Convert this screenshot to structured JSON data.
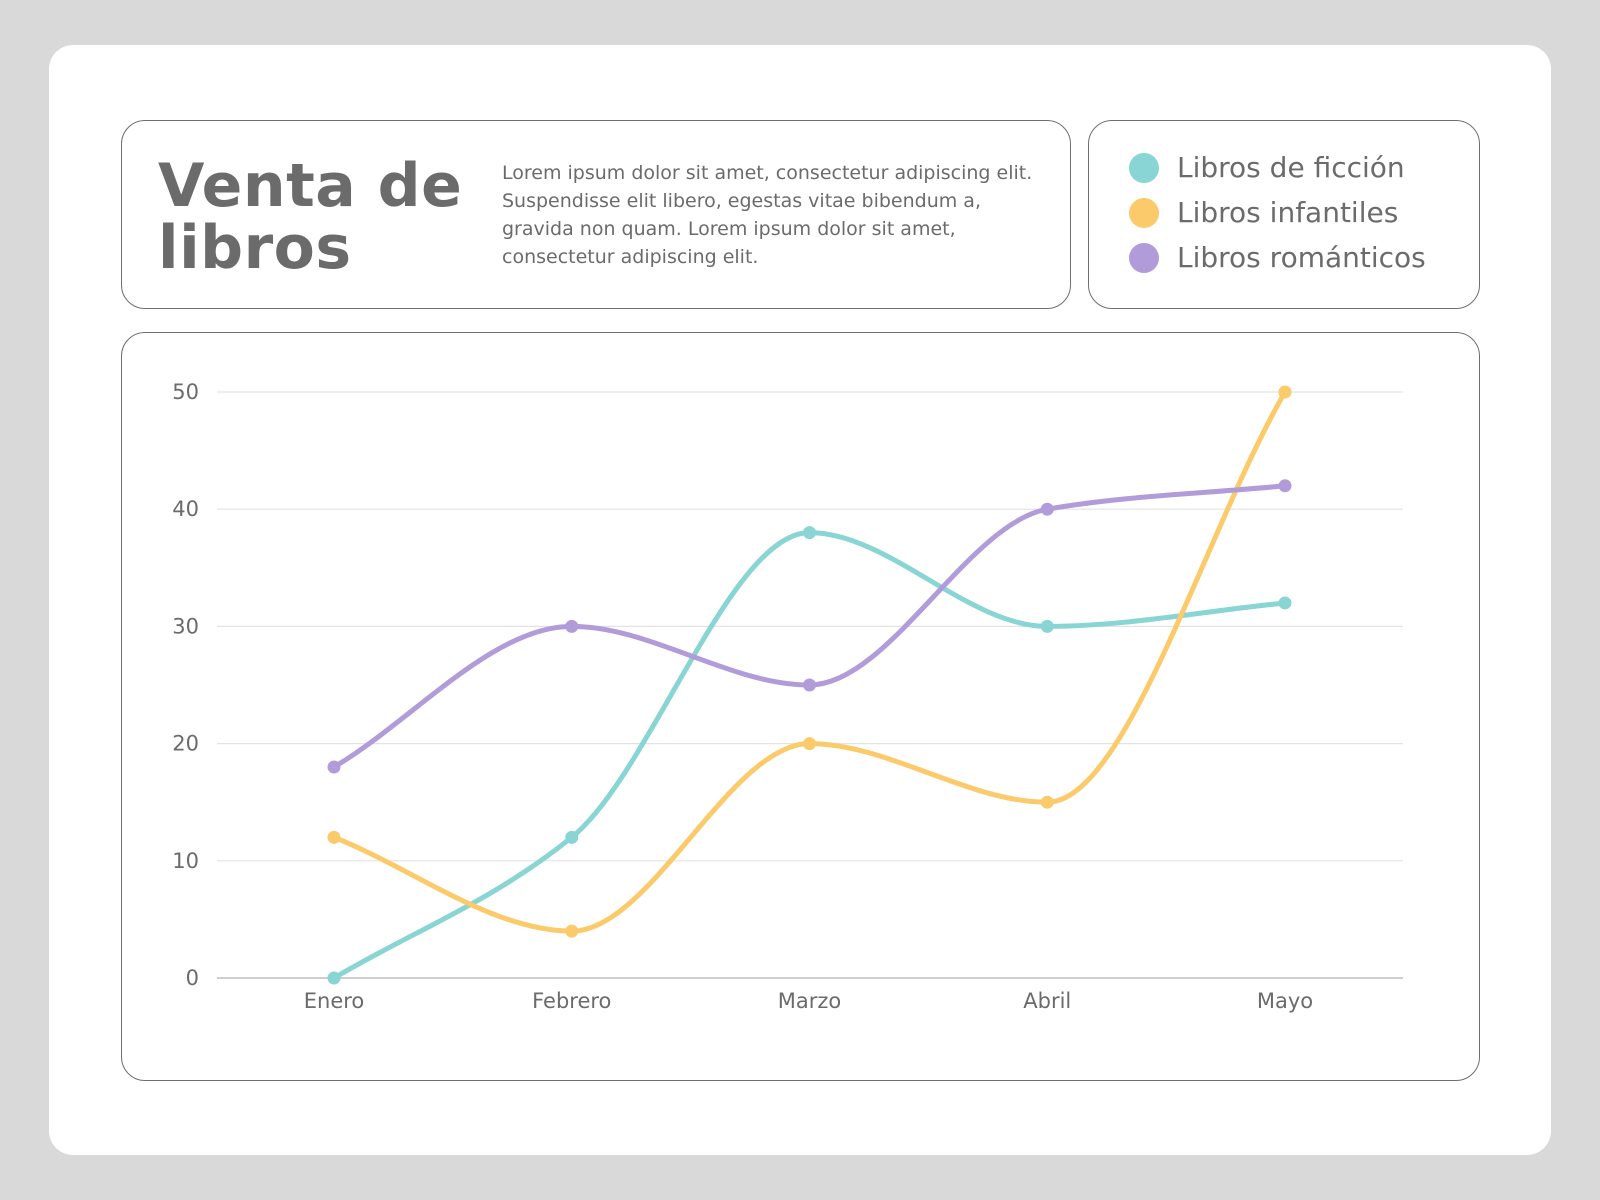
{
  "header": {
    "title": "Venta de libros",
    "description": "Lorem ipsum dolor sit amet, consectetur adipiscing elit. Suspendisse elit libero, egestas vitae bibendum a, gravida non quam. Lorem ipsum dolor sit amet, consectetur adipiscing elit."
  },
  "legend": [
    {
      "label": "Libros de ficción",
      "color": "#88d5d3"
    },
    {
      "label": "Libros infantiles",
      "color": "#fbca6a"
    },
    {
      "label": "Libros románticos",
      "color": "#b19cd9"
    }
  ],
  "chart_data": {
    "type": "line",
    "categories": [
      "Enero",
      "Febrero",
      "Marzo",
      "Abril",
      "Mayo"
    ],
    "series": [
      {
        "name": "Libros de ficción",
        "color": "#88d5d3",
        "values": [
          0,
          12,
          38,
          30,
          32
        ]
      },
      {
        "name": "Libros infantiles",
        "color": "#fbca6a",
        "values": [
          12,
          4,
          20,
          15,
          50
        ]
      },
      {
        "name": "Libros románticos",
        "color": "#b19cd9",
        "values": [
          18,
          30,
          25,
          40,
          42
        ]
      }
    ],
    "yticks": [
      0,
      10,
      20,
      30,
      40,
      50
    ],
    "ylim": [
      0,
      50
    ],
    "grid": true,
    "legend_position": "top-right",
    "smooth": true
  }
}
